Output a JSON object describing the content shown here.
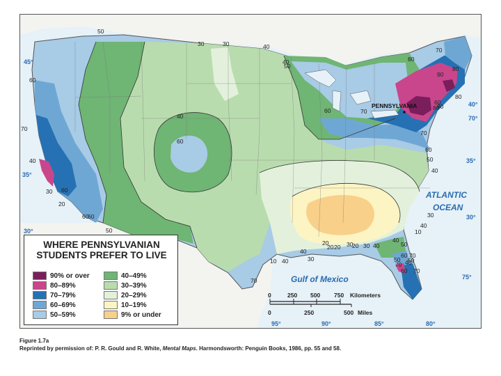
{
  "legend": {
    "title_line1": "WHERE PENNSYLVANIAN",
    "title_line2": "STUDENTS PREFER TO LIVE",
    "items": [
      {
        "label": "90% or over",
        "color": "#7b1e5c"
      },
      {
        "label": "80–89%",
        "color": "#c9468c"
      },
      {
        "label": "70–79%",
        "color": "#2671b3"
      },
      {
        "label": "60–69%",
        "color": "#6fa7d4"
      },
      {
        "label": "50–59%",
        "color": "#a8cbe6"
      },
      {
        "label": "40–49%",
        "color": "#6fb574"
      },
      {
        "label": "30–39%",
        "color": "#b9dcae"
      },
      {
        "label": "20–29%",
        "color": "#e3f1dc"
      },
      {
        "label": "10–19%",
        "color": "#fdf4c3"
      },
      {
        "label": "9% or under",
        "color": "#f8d08a"
      }
    ]
  },
  "labels": {
    "pennsylvania": "PENNSYLVANIA",
    "atlantic_line1": "ATLANTIC",
    "atlantic_line2": "OCEAN",
    "gulf": "Gulf of Mexico"
  },
  "latitudes": {
    "lat45": "45°",
    "lat40": "40°",
    "lat35_w": "35°",
    "lat35_e": "35°",
    "lat30_w": "30°",
    "lat30_e": "30°",
    "lat75": "75°",
    "lat70": "70°"
  },
  "longitudes": {
    "lon95": "95°",
    "lon90": "90°",
    "lon85": "85°",
    "lon80": "80°"
  },
  "scale": {
    "km_ticks": [
      "0",
      "250",
      "500",
      "750"
    ],
    "km_unit": "Kilometers",
    "mi_ticks": [
      "0",
      "250",
      "500"
    ],
    "mi_unit": "Miles"
  },
  "contours": {
    "c1": "50",
    "c2": "30",
    "c3": "30",
    "c4": "40",
    "c5": "70",
    "c6": "80",
    "c7": "90",
    "c8": "80",
    "c9": "80",
    "c10": "40",
    "c11": "50",
    "c12": "60",
    "c13": "70",
    "c14": "60",
    "c15": "70",
    "c16": "60",
    "c17": "80",
    "c18": "70",
    "c19": "60",
    "c20": "50",
    "c21": "40",
    "c22": "60",
    "c23": "50",
    "c24": "40",
    "c25": "60",
    "c26": "50",
    "c27": "40",
    "c28": "30",
    "c29": "20",
    "c30": "30",
    "c31": "40",
    "c32": "10",
    "c33": "20",
    "c34": "30",
    "c35": "20",
    "c36": "30",
    "c37": "40",
    "c38": "50",
    "c39": "60",
    "c40": "70",
    "c41": "40",
    "c42": "30",
    "c43": "40",
    "c44": "20",
    "c45": "10",
    "c46": "40",
    "c47": "70",
    "c48": "60",
    "c49": "50",
    "c50": "80",
    "c51": "70",
    "c52": "60",
    "c53": "50",
    "c54": "40",
    "c55": "60",
    "c56": "70",
    "c57": "20"
  },
  "caption": {
    "figure": "Figure 1.7a",
    "credit_prefix": "Reprinted by permission of: P. R. Gould and R. White,",
    "credit_title": "Mental Maps",
    "credit_suffix": ". Harmondsworth: Penguin Books, 1986, pp. 55 and 58."
  }
}
